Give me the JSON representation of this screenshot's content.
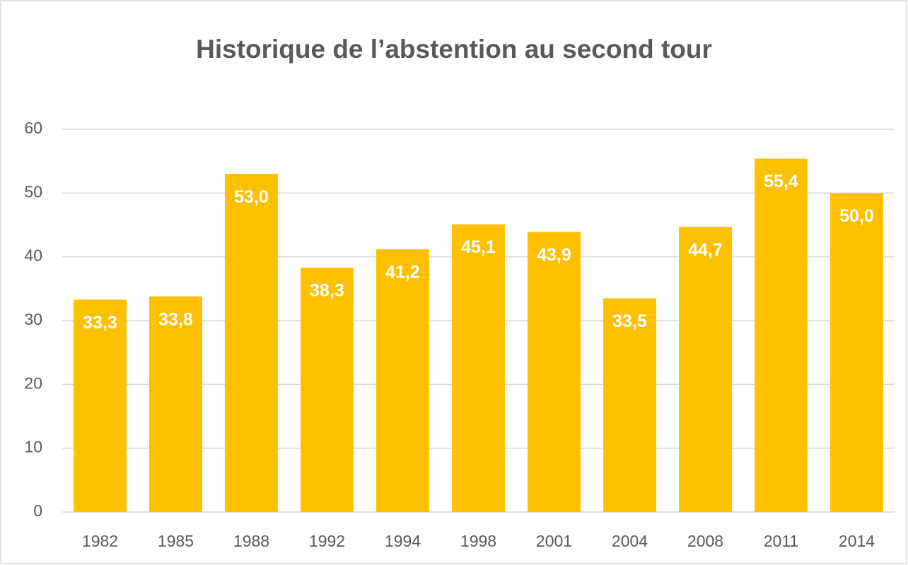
{
  "chart_data": {
    "type": "bar",
    "title": "Historique de l’abstention au second tour",
    "categories": [
      "1982",
      "1985",
      "1988",
      "1992",
      "1994",
      "1998",
      "2001",
      "2004",
      "2008",
      "2011",
      "2014"
    ],
    "values": [
      33.3,
      33.8,
      53.0,
      38.3,
      41.2,
      45.1,
      43.9,
      33.5,
      44.7,
      55.4,
      50.0
    ],
    "value_labels": [
      "33,3",
      "33,8",
      "53,0",
      "38,3",
      "41,2",
      "45,1",
      "43,9",
      "33,5",
      "44,7",
      "55,4",
      "50,0"
    ],
    "color": "#ffc000",
    "ylim": [
      0,
      60
    ],
    "yticks": [
      0,
      10,
      20,
      30,
      40,
      50,
      60
    ],
    "grid": true
  }
}
